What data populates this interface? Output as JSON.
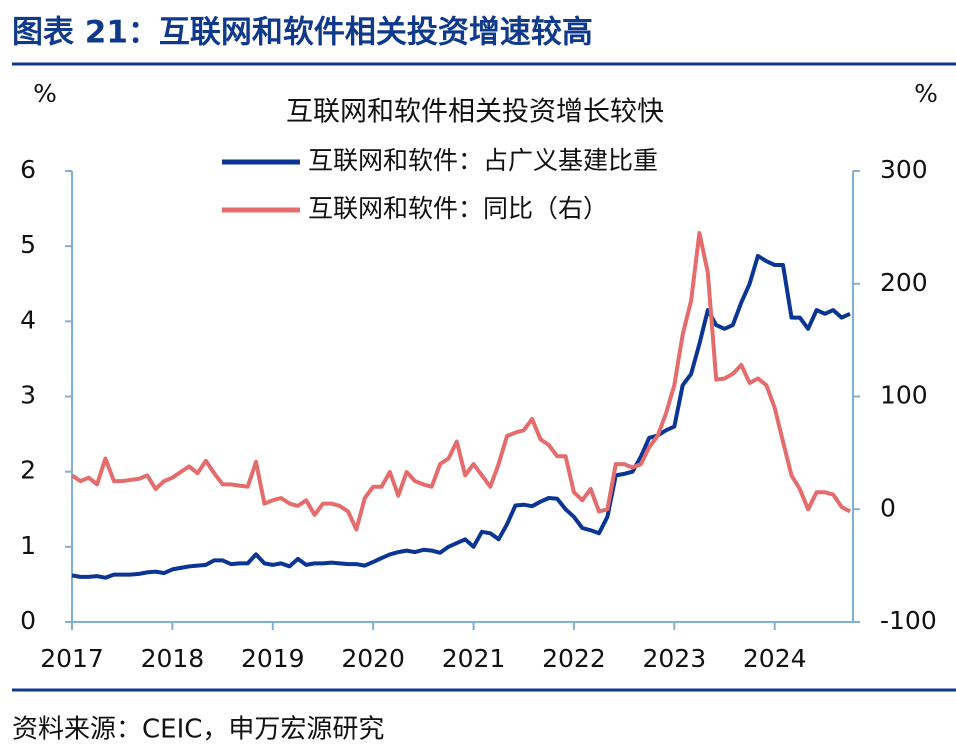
{
  "title": "图表 21：互联网和软件相关投资增速较高",
  "source": "资料来源：CEIC，申万宏源研究",
  "chart_data": {
    "type": "line",
    "title": "互联网和软件相关投资增长较快",
    "y_unit": "%",
    "y2_unit": "%",
    "x": [
      2017,
      2017.083,
      2017.167,
      2017.25,
      2017.333,
      2017.417,
      2017.5,
      2017.583,
      2017.667,
      2017.75,
      2017.833,
      2017.917,
      2018,
      2018.083,
      2018.167,
      2018.25,
      2018.333,
      2018.417,
      2018.5,
      2018.583,
      2018.667,
      2018.75,
      2018.833,
      2018.917,
      2019,
      2019.083,
      2019.167,
      2019.25,
      2019.333,
      2019.417,
      2019.5,
      2019.583,
      2019.667,
      2019.75,
      2019.833,
      2019.917,
      2020,
      2020.083,
      2020.167,
      2020.25,
      2020.333,
      2020.417,
      2020.5,
      2020.583,
      2020.667,
      2020.75,
      2020.833,
      2020.917,
      2021,
      2021.083,
      2021.167,
      2021.25,
      2021.333,
      2021.417,
      2021.5,
      2021.583,
      2021.667,
      2021.75,
      2021.833,
      2021.917,
      2022,
      2022.083,
      2022.167,
      2022.25,
      2022.333,
      2022.417,
      2022.5,
      2022.583,
      2022.667,
      2022.75,
      2022.833,
      2022.917,
      2023,
      2023.083,
      2023.167,
      2023.25,
      2023.333,
      2023.417,
      2023.5,
      2023.583,
      2023.667,
      2023.75,
      2023.833,
      2023.917,
      2024,
      2024.083,
      2024.167,
      2024.25,
      2024.333,
      2024.417,
      2024.5,
      2024.583,
      2024.667,
      2024.75
    ],
    "xlim": [
      2017,
      2024.75
    ],
    "xticks": [
      2017,
      2018,
      2019,
      2020,
      2021,
      2022,
      2023,
      2024
    ],
    "ylim": [
      0,
      6
    ],
    "yticks": [
      0,
      1,
      2,
      3,
      4,
      5,
      6
    ],
    "y2lim": [
      -100,
      300
    ],
    "y2ticks": [
      -100,
      0,
      100,
      200,
      300
    ],
    "series": [
      {
        "name": "互联网和软件：占广义基建比重",
        "color": "#0a3594",
        "axis": "y",
        "values": [
          0.62,
          0.6,
          0.6,
          0.61,
          0.59,
          0.63,
          0.63,
          0.63,
          0.64,
          0.66,
          0.67,
          0.65,
          0.7,
          0.72,
          0.74,
          0.75,
          0.76,
          0.82,
          0.82,
          0.77,
          0.78,
          0.78,
          0.9,
          0.78,
          0.76,
          0.78,
          0.74,
          0.84,
          0.76,
          0.78,
          0.78,
          0.79,
          0.78,
          0.77,
          0.77,
          0.75,
          0.8,
          0.85,
          0.9,
          0.93,
          0.95,
          0.93,
          0.96,
          0.95,
          0.92,
          1.0,
          1.05,
          1.1,
          1.0,
          1.2,
          1.18,
          1.1,
          1.3,
          1.55,
          1.56,
          1.54,
          1.6,
          1.65,
          1.64,
          1.5,
          1.4,
          1.25,
          1.22,
          1.18,
          1.4,
          1.95,
          1.97,
          2.0,
          2.2,
          2.45,
          2.48,
          2.55,
          2.6,
          3.15,
          3.3,
          3.7,
          4.15,
          3.95,
          3.9,
          3.95,
          4.25,
          4.5,
          4.87,
          4.8,
          4.75,
          4.75,
          4.05,
          4.05,
          3.9,
          4.15,
          4.1,
          4.15,
          4.05,
          4.1
        ]
      },
      {
        "name": "互联网和软件：同比（右）",
        "color": "#e46c6c",
        "axis": "y2",
        "values": [
          30,
          25,
          28,
          22,
          45,
          25,
          25,
          26,
          27,
          30,
          18,
          25,
          28,
          33,
          38,
          32,
          43,
          32,
          22,
          22,
          21,
          20,
          42,
          5,
          8,
          10,
          5,
          3,
          8,
          -5,
          5,
          5,
          3,
          -2,
          -18,
          10,
          20,
          20,
          33,
          12,
          33,
          25,
          22,
          20,
          40,
          45,
          60,
          30,
          40,
          30,
          20,
          40,
          65,
          68,
          70,
          80,
          62,
          57,
          47,
          47,
          15,
          8,
          18,
          -2,
          0,
          40,
          40,
          37,
          40,
          55,
          65,
          85,
          110,
          155,
          185,
          245,
          210,
          115,
          116,
          120,
          128,
          112,
          116,
          110,
          90,
          60,
          30,
          18,
          0,
          15,
          15,
          13,
          2,
          -2
        ]
      }
    ]
  }
}
